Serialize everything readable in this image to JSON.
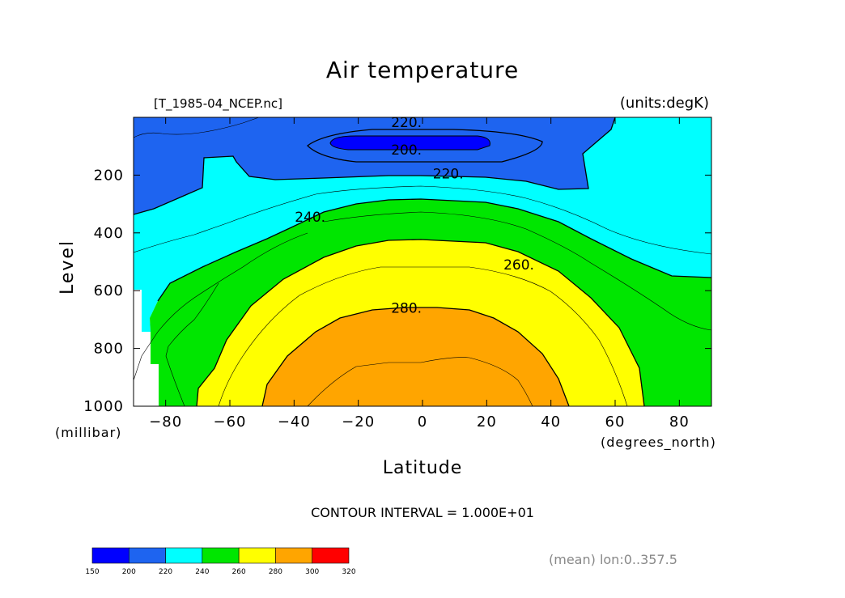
{
  "chart_data": {
    "type": "contour",
    "title": "Air temperature",
    "file_label": "[T_1985-04_NCEP.nc]",
    "units_label": "(units:degK)",
    "xlabel": "Latitude",
    "x_units": "(degrees_north)",
    "ylabel": "Level",
    "y_units": "(millibar)",
    "xlim": [
      -90,
      90
    ],
    "ylim": [
      1000,
      0
    ],
    "x_ticks": [
      -80,
      -60,
      -40,
      -20,
      0,
      20,
      40,
      60,
      80
    ],
    "x_tick_labels": [
      "−80",
      "−60",
      "−40",
      "−20",
      "0",
      "20",
      "40",
      "60",
      "80"
    ],
    "y_ticks": [
      200,
      400,
      600,
      800,
      1000
    ],
    "y_tick_labels": [
      "200",
      "400",
      "600",
      "800",
      "1000"
    ],
    "contour_interval_text": "CONTOUR INTERVAL = 1.000E+01",
    "contour_labels": [
      {
        "text": "220.",
        "x": -5,
        "y": 17
      },
      {
        "text": "200.",
        "x": -5,
        "y": 112
      },
      {
        "text": "220.",
        "x": 8,
        "y": 195
      },
      {
        "text": "240.",
        "x": -35,
        "y": 345
      },
      {
        "text": "260.",
        "x": 30,
        "y": 510
      },
      {
        "text": "280.",
        "x": -5,
        "y": 660
      }
    ],
    "colorbar": {
      "boundaries": [
        "150",
        "200",
        "220",
        "240",
        "260",
        "280",
        "300",
        "320"
      ],
      "colors": [
        "#0000ff",
        "#1e64f0",
        "#00ffff",
        "#00e600",
        "#ffff00",
        "#ffa500",
        "#ff0000"
      ]
    },
    "footer_note": "(mean) lon:0..357.5"
  }
}
